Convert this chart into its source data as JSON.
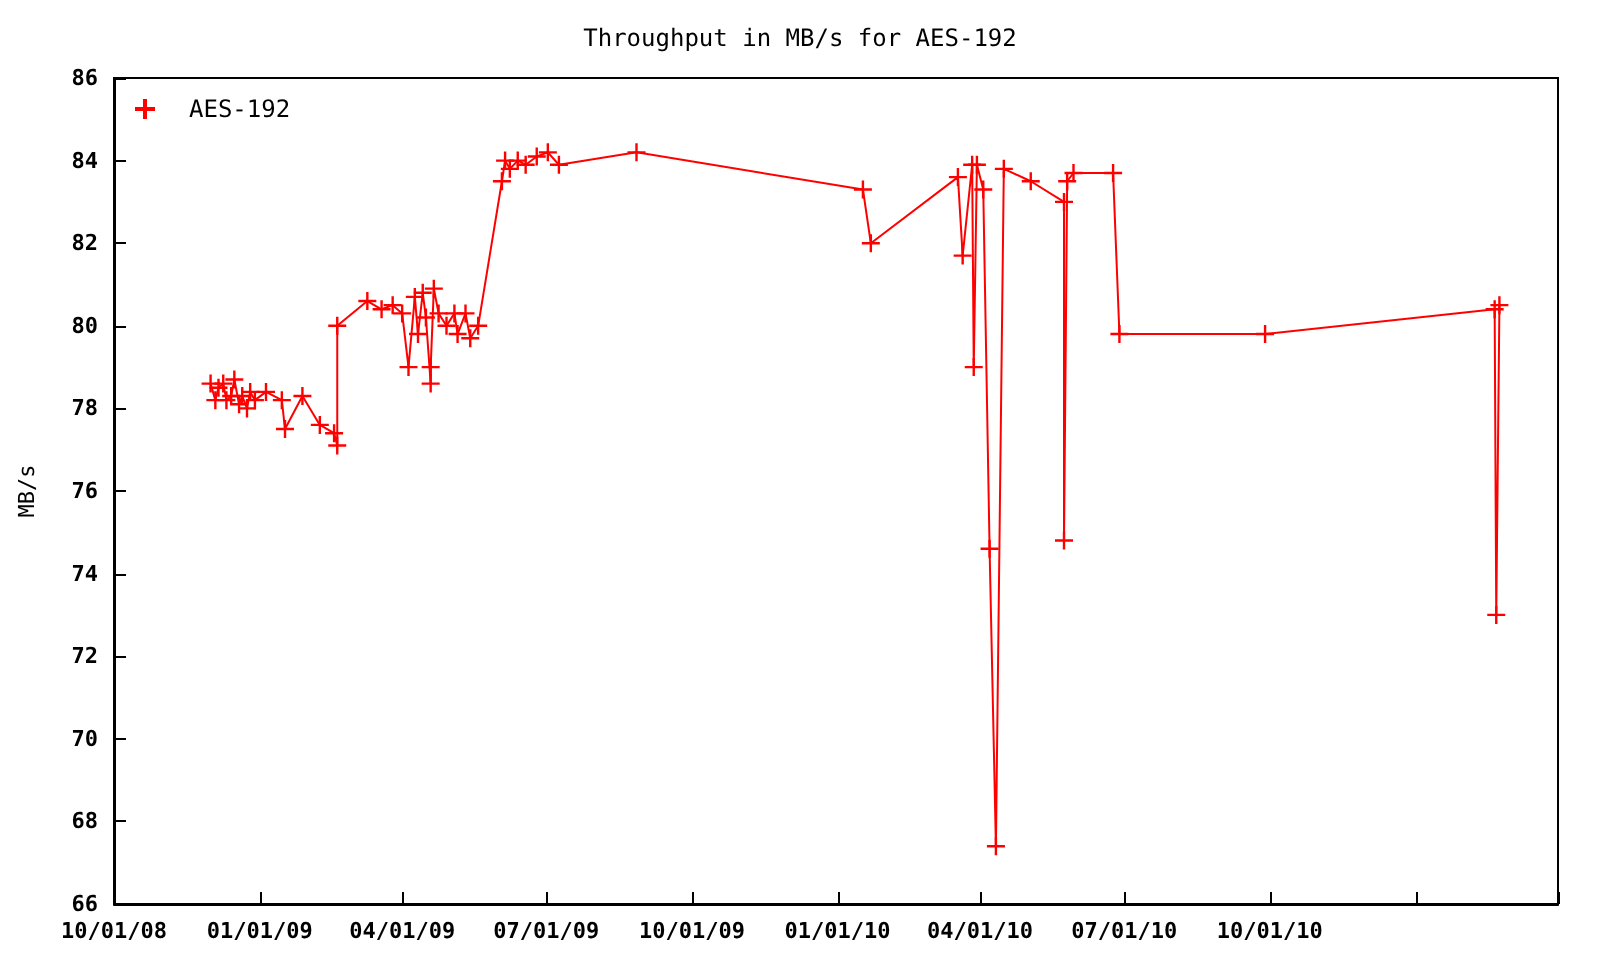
{
  "chart_data": {
    "type": "line",
    "title": "Throughput in MB/s for AES-192",
    "ylabel": "MB/s",
    "xlim": [
      "2008-10-01",
      "2011-04-01"
    ],
    "xticks": [
      {
        "value": "2008-10-01",
        "label": "10/01/08"
      },
      {
        "value": "2009-01-01",
        "label": "01/01/09"
      },
      {
        "value": "2009-04-01",
        "label": "04/01/09"
      },
      {
        "value": "2009-07-01",
        "label": "07/01/09"
      },
      {
        "value": "2009-10-01",
        "label": "10/01/09"
      },
      {
        "value": "2010-01-01",
        "label": "01/01/10"
      },
      {
        "value": "2010-04-01",
        "label": "04/01/10"
      },
      {
        "value": "2010-07-01",
        "label": "07/01/10"
      },
      {
        "value": "2010-10-01",
        "label": "10/01/10"
      },
      {
        "value": "2011-01-01",
        "label": null
      },
      {
        "value": "2011-04-01",
        "label": null
      }
    ],
    "ylim": [
      66,
      86
    ],
    "yticks": [
      66,
      68,
      70,
      72,
      74,
      76,
      78,
      80,
      82,
      84,
      86
    ],
    "grid": false,
    "legend": "top left",
    "marker": "cross",
    "line_style": "solid",
    "series": [
      {
        "name": "AES-192",
        "color": "#ff0000",
        "x": [
          "2008-12-01",
          "2008-12-04",
          "2008-12-06",
          "2008-12-09",
          "2008-12-11",
          "2008-12-14",
          "2008-12-16",
          "2008-12-19",
          "2008-12-21",
          "2008-12-24",
          "2008-12-26",
          "2008-12-29",
          "2009-01-05",
          "2009-01-15",
          "2009-01-17",
          "2009-01-28",
          "2009-02-08",
          "2009-02-17",
          "2009-02-19",
          "2009-02-19",
          "2009-03-10",
          "2009-03-19",
          "2009-03-26",
          "2009-04-01",
          "2009-04-05",
          "2009-04-09",
          "2009-04-11",
          "2009-04-14",
          "2009-04-16",
          "2009-04-19",
          "2009-04-19",
          "2009-04-21",
          "2009-04-24",
          "2009-04-29",
          "2009-05-04",
          "2009-05-06",
          "2009-05-11",
          "2009-05-14",
          "2009-05-19",
          "2009-06-03",
          "2009-06-05",
          "2009-06-08",
          "2009-06-13",
          "2009-06-18",
          "2009-06-25",
          "2009-07-02",
          "2009-07-09",
          "2009-08-27",
          "2010-01-17",
          "2010-01-22",
          "2010-03-18",
          "2010-03-21",
          "2010-03-27",
          "2010-03-28",
          "2010-03-30",
          "2010-04-03",
          "2010-04-07",
          "2010-04-11",
          "2010-04-16",
          "2010-05-03",
          "2010-05-24",
          "2010-05-24",
          "2010-05-26",
          "2010-05-30",
          "2010-06-24",
          "2010-06-28",
          "2010-09-28",
          "2011-02-20",
          "2011-02-21",
          "2011-02-23"
        ],
        "values": [
          78.6,
          78.2,
          78.5,
          78.6,
          78.2,
          78.3,
          78.7,
          78.1,
          78.3,
          78.0,
          78.4,
          78.2,
          78.4,
          78.2,
          77.5,
          78.3,
          77.6,
          77.4,
          77.1,
          80.0,
          80.6,
          80.4,
          80.5,
          80.3,
          79.0,
          80.7,
          79.8,
          80.8,
          80.2,
          78.6,
          79.0,
          80.9,
          80.3,
          80.0,
          80.3,
          79.8,
          80.3,
          79.7,
          80.0,
          83.5,
          84.0,
          83.8,
          84.0,
          83.9,
          84.1,
          84.2,
          83.9,
          84.2,
          83.3,
          82.0,
          83.6,
          81.7,
          83.9,
          79.0,
          83.9,
          83.3,
          74.6,
          67.4,
          83.8,
          83.5,
          83.0,
          74.8,
          83.5,
          83.7,
          83.7,
          79.8,
          79.8,
          80.4,
          73.0,
          80.5
        ]
      }
    ]
  }
}
